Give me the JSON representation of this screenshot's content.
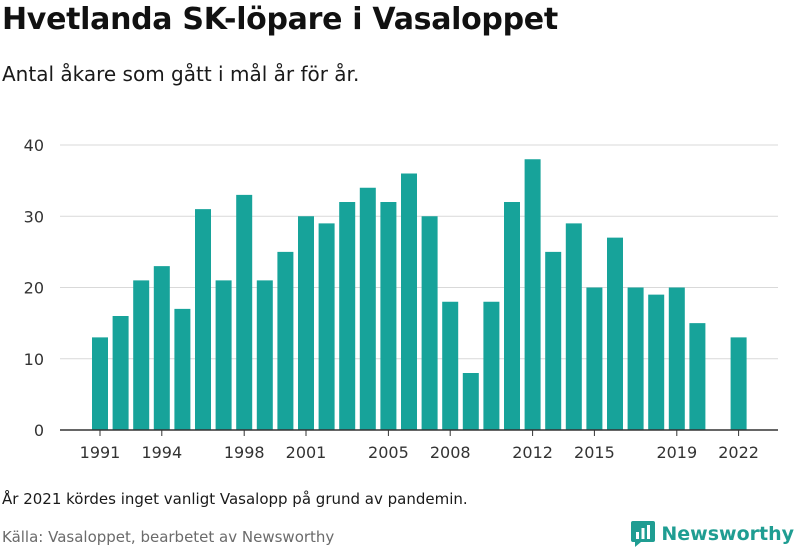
{
  "header": {
    "title": "Hvetlanda SK-löpare i Vasaloppet",
    "subtitle": "Antal åkare som gått i mål år för år."
  },
  "footer": {
    "note": "År 2021 kördes inget vanligt Vasalopp på grund av pandemin.",
    "source": "Källa: Vasaloppet, bearbetet av Newsworthy",
    "brand": "Newsworthy"
  },
  "colors": {
    "bar": "#17a39a",
    "grid": "#d9d9d9",
    "axis": "#333333",
    "brand": "#1f9d92"
  },
  "chart_data": {
    "type": "bar",
    "title": "Hvetlanda SK-löpare i Vasaloppet",
    "subtitle": "Antal åkare som gått i mål år för år.",
    "xlabel": "",
    "ylabel": "",
    "ylim": [
      0,
      40
    ],
    "yticks": [
      0,
      10,
      20,
      30,
      40
    ],
    "xtick_labels": [
      "1991",
      "1994",
      "1998",
      "2001",
      "2005",
      "2008",
      "2012",
      "2015",
      "2019",
      "2022"
    ],
    "grid": true,
    "legend": "none",
    "categories": [
      "1991",
      "1992",
      "1993",
      "1994",
      "1995",
      "1996",
      "1997",
      "1998",
      "1999",
      "2000",
      "2001",
      "2002",
      "2003",
      "2004",
      "2005",
      "2006",
      "2007",
      "2008",
      "2009",
      "2010",
      "2011",
      "2012",
      "2013",
      "2014",
      "2015",
      "2016",
      "2017",
      "2018",
      "2019",
      "2020",
      "2021",
      "2022"
    ],
    "values": [
      13,
      16,
      21,
      23,
      17,
      31,
      21,
      33,
      21,
      25,
      30,
      29,
      32,
      34,
      32,
      36,
      30,
      18,
      8,
      18,
      32,
      38,
      25,
      29,
      20,
      27,
      20,
      19,
      20,
      15,
      null,
      13
    ]
  }
}
